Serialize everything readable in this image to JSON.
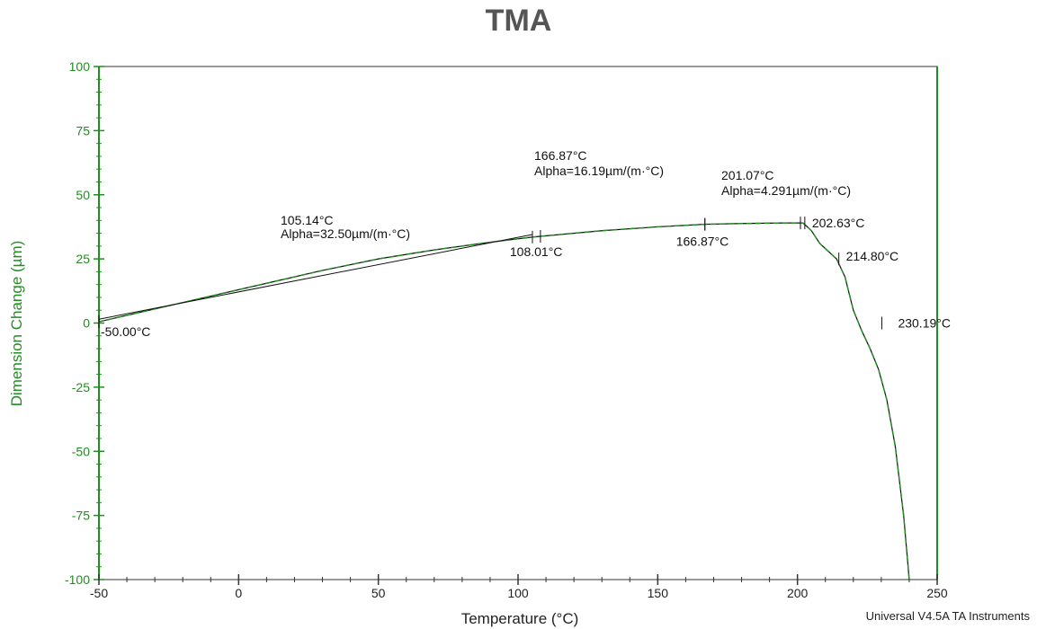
{
  "chart_data": {
    "type": "line",
    "title": "TMA",
    "xlabel": "Temperature (°C)",
    "ylabel": "Dimension Change (µm)",
    "xlim": [
      -50,
      250
    ],
    "ylim": [
      -100,
      100
    ],
    "xticks": [
      "-50",
      "0",
      "50",
      "100",
      "150",
      "200",
      "250"
    ],
    "yticks": [
      "100",
      "75",
      "50",
      "25",
      "0",
      "-25",
      "-50",
      "-75",
      "-100"
    ],
    "grid": false,
    "series": [
      {
        "name": "",
        "color": "#1f8f1f",
        "x": [
          -50,
          -30,
          -10,
          10,
          30,
          50,
          70,
          90,
          105,
          108,
          130,
          150,
          167,
          180,
          195,
          202,
          205,
          208,
          211,
          214,
          217,
          220,
          223,
          226,
          229,
          232,
          235,
          238,
          240
        ],
        "y": [
          0.5,
          5.5,
          10.5,
          15.5,
          20.5,
          25,
          28.5,
          31.5,
          33.5,
          33.8,
          36,
          37.5,
          38.5,
          38.8,
          39,
          39,
          36,
          31,
          28,
          25,
          18,
          5,
          -3,
          -10,
          -18,
          -30,
          -48,
          -75,
          -100
        ]
      }
    ],
    "annotations": [
      {
        "label": "-50.00°C",
        "x": -50,
        "y": 0.5
      },
      {
        "label": "105.14°C",
        "sub": "Alpha=32.50µm/(m·°C)",
        "x": 105.14,
        "y": 33.5
      },
      {
        "label": "108.01°C",
        "x": 108.01,
        "y": 33.8
      },
      {
        "label": "166.87°C",
        "sub": "Alpha=16.19µm/(m·°C)",
        "x": 166.87,
        "y": 38.5
      },
      {
        "label": "166.87°C",
        "x": 166.87,
        "y": 38.5
      },
      {
        "label": "201.07°C",
        "sub": "Alpha=4.291µm/(m·°C)",
        "x": 201.07,
        "y": 39
      },
      {
        "label": "202.63°C",
        "x": 202.63,
        "y": 39
      },
      {
        "label": "214.80°C",
        "x": 214.8,
        "y": 25
      },
      {
        "label": "230.19°C",
        "x": 230.19,
        "y": 0
      }
    ]
  },
  "footer": {
    "credit": "Universal V4.5A TA Instruments"
  }
}
